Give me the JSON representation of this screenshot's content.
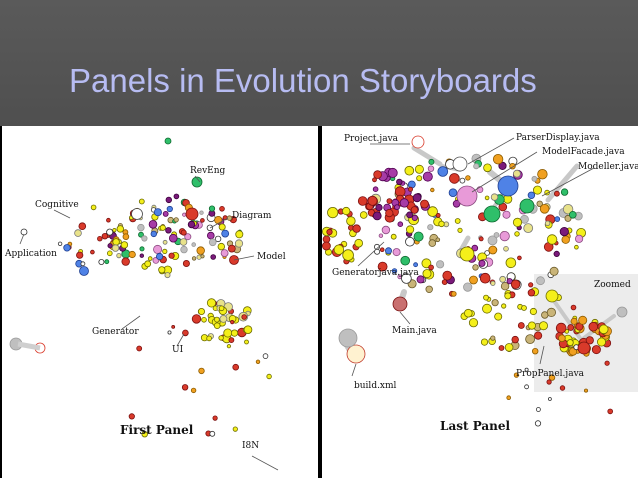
{
  "slide": {
    "title": "Panels in Evolution Storyboards"
  },
  "first_panel": {
    "caption": "First Panel",
    "labels": {
      "reveng": "RevEng",
      "cognitive": "Cognitive",
      "diagram": "Diagram",
      "application": "Application",
      "model": "Model",
      "generator": "Generator",
      "ui": "UI",
      "i18n": "I8N"
    }
  },
  "last_panel": {
    "caption": "Last Panel",
    "labels": {
      "project": "Project.java",
      "parser_display": "ParserDisplay.java",
      "model_facade": "ModelFacade.java",
      "modeller": "Modeller.java",
      "generator": "Generatorjava.java",
      "main": "Main.java",
      "build": "build.xml",
      "prop_panel": "PropPanel.java",
      "zoomed": "Zoomed"
    }
  },
  "colors": {
    "title": "#b7bcf2",
    "title_bar": "#555555",
    "background": "#000000"
  }
}
